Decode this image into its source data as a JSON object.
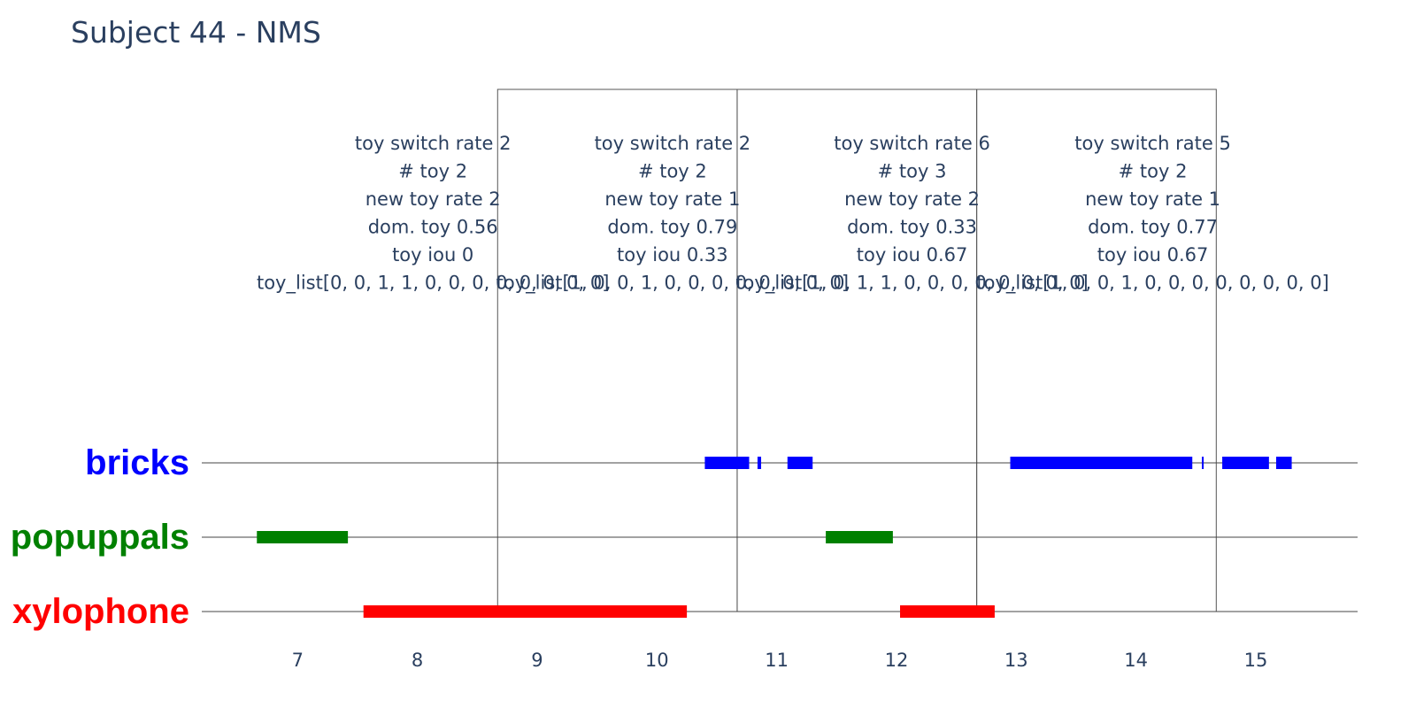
{
  "chart_data": {
    "type": "timeline",
    "title": "Subject 44 - NMS",
    "xlim": [
      6.2,
      15.85
    ],
    "x_ticks": [
      "7",
      "8",
      "9",
      "10",
      "11",
      "12",
      "13",
      "14",
      "15"
    ],
    "y_categories": [
      "bricks",
      "popuppals",
      "xylophone"
    ],
    "category_colors": {
      "bricks": "#0000ff",
      "popuppals": "#008000",
      "xylophone": "#ff0000"
    },
    "intervals": [
      {
        "toy": "bricks",
        "start": 10.4,
        "end": 10.77
      },
      {
        "toy": "bricks",
        "start": 10.84,
        "end": 10.87
      },
      {
        "toy": "bricks",
        "start": 11.09,
        "end": 11.3
      },
      {
        "toy": "bricks",
        "start": 12.95,
        "end": 14.47
      },
      {
        "toy": "bricks",
        "start": 14.55,
        "end": 14.56
      },
      {
        "toy": "bricks",
        "start": 14.72,
        "end": 15.11
      },
      {
        "toy": "bricks",
        "start": 15.17,
        "end": 15.3
      },
      {
        "toy": "popuppals",
        "start": 6.66,
        "end": 7.42
      },
      {
        "toy": "popuppals",
        "start": 11.41,
        "end": 11.97
      },
      {
        "toy": "xylophone",
        "start": 7.55,
        "end": 10.25
      },
      {
        "toy": "xylophone",
        "start": 12.03,
        "end": 12.82
      }
    ],
    "windows": [
      {
        "start": 8.67,
        "end": 10.67
      },
      {
        "start": 10.67,
        "end": 12.67
      },
      {
        "start": 12.67,
        "end": 14.67
      }
    ],
    "annotations": [
      {
        "center": 8.13,
        "lines": [
          "toy switch rate 2",
          "# toy 2",
          "new toy rate 2",
          "dom. toy 0.56",
          "toy iou 0",
          "toy_list[0, 0, 1, 1, 0, 0, 0, 0, 0, 0, 0, 0]"
        ]
      },
      {
        "center": 10.13,
        "lines": [
          "toy switch rate 2",
          "# toy 2",
          "new toy rate 1",
          "dom. toy 0.79",
          "toy iou 0.33",
          "toy_list[1, 0, 0, 1, 0, 0, 0, 0, 0, 0, 0, 0]"
        ]
      },
      {
        "center": 12.13,
        "lines": [
          "toy switch rate 6",
          "# toy 3",
          "new toy rate 2",
          "dom. toy 0.33",
          "toy iou 0.67",
          "toy_list[1, 0, 1, 1, 0, 0, 0, 0, 0, 0, 0, 0]"
        ]
      },
      {
        "center": 14.14,
        "lines": [
          "toy switch rate 5",
          "# toy 2",
          "new toy rate 1",
          "dom. toy 0.77",
          "toy iou 0.67",
          "toy_list[1, 0, 0, 1, 0, 0, 0, 0, 0, 0, 0, 0]"
        ]
      }
    ]
  }
}
